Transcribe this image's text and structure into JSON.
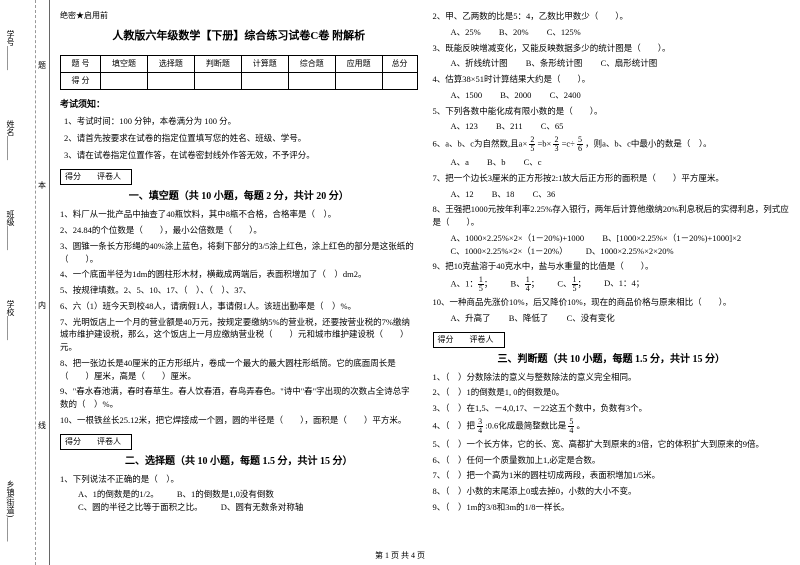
{
  "secret": "绝密★启用前",
  "title": "人教版六年级数学【下册】综合练习试卷C卷 附解析",
  "gutter": {
    "labels": [
      "学号______",
      "姓名______",
      "班级______",
      "学校______",
      "乡镇(街道)______"
    ],
    "chars": [
      "题",
      "本",
      "内",
      "线",
      "封"
    ],
    "char_extra": "禁"
  },
  "score_header": [
    "题  号",
    "填空题",
    "选择题",
    "判断题",
    "计算题",
    "综合题",
    "应用题",
    "总分"
  ],
  "score_row2_label": "得  分",
  "notice_title": "考试须知：",
  "notices": [
    "1、考试时间：100 分钟，本卷满分为 100 分。",
    "2、请首先按要求在试卷的指定位置填写您的姓名、班级、学号。",
    "3、请在试卷指定位置作答，在试卷密封线外作答无效，不予评分。"
  ],
  "scorer": {
    "label1": "得分",
    "label2": "评卷人"
  },
  "sec1": {
    "title": "一、填空题（共 10 小题，每题 2 分，共计 20 分）",
    "q": [
      "1、料厂从一批产品中抽查了40瓶饮料，其中8瓶不合格，合格率是（　）。",
      "2、24.84的个位数是（　　），最小公倍数是（　　）。",
      "3、圆锥一条长方形绳的40%涂上蓝色，将剩下部分的3/5涂上红色，涂上红色的部分是这张纸的（　　）。",
      "4、一个底面半径为1dm的圆柱形木材，横截成两端后，表面积增加了（　）dm2。",
      "5、按规律填数。2、5、10、17、（　）、（　）、37、",
      "6、六（1）班今天到校48人，请病假1人，事请假1人。该班出勤率是（　）%。",
      "7、光明饭店上一个月的营业额是40万元，按规定要缴纳5%的营业税，还要按营业税的7%缴纳城市维护建设税，那么，这个饭店上一月应缴纳营业税（　　）元和城市维护建设税（　　）元。",
      "8、把一张边长是40厘米的正方形纸片，卷成一个最大的最大圆柱形纸筒。它的底面周长是（　　）厘米，高是（　　）厘米。",
      "9、\"春水春池满，春时春草生。春人饮春酒，春鸟弄春色。\"诗中\"春\"字出现的次数占全诗总字数的（　）%。",
      "10、一根铁丝长25.12米，把它焊接成一个圆，圆的半径是（　　），面积是（　　）平方米。"
    ]
  },
  "sec2": {
    "title": "二、选择题（共 10 小题，每题 1.5 分，共计 15 分）",
    "q1": "1、下列说法不正确的是（　）。",
    "q1o": [
      "A、1的倒数是的1/2。",
      "B、1的倒数是1,0没有倒数",
      "C、圆的半径之比等于面积之比。",
      "D、圆有无数条对称轴"
    ],
    "q2": "2、甲、乙两数的比是5：4，乙数比甲数少（　　）。",
    "q2o": [
      "A、25%",
      "B、20%",
      "C、125%"
    ],
    "q3": "3、既能反映增减变化，又能反映数据多少的统计图是（　　）。",
    "q3o": [
      "A、折线统计图",
      "B、条形统计图",
      "C、扇形统计图"
    ],
    "q4": "4、估算38×51时计算结果大约是（　　）。",
    "q4o": [
      "A、1500",
      "B、2000",
      "C、2400"
    ],
    "q5": "5、下列各数中能化成有限小数的是（　　）。",
    "q5o": [
      "A、123",
      "B、211",
      "C、65"
    ],
    "q6a": "6、a、b、c为自然数,且a×",
    "q6b": "=b×",
    "q6c": "=c÷",
    "q6d": "，则a、b、c中最小的数是（　）。",
    "q6f1n": "2",
    "q6f1d": "5",
    "q6f2n": "2",
    "q6f2d": "3",
    "q6f3n": "5",
    "q6f3d": "6",
    "q6o": [
      "A、a",
      "B、b",
      "C、c"
    ],
    "q7": "7、把一个边长3厘米的正方形按2:1放大后正方形的面积是（　　）平方厘米。",
    "q7o": [
      "A、12",
      "B、18",
      "C、36"
    ],
    "q8": "8、王强把1000元按年利率2.25%存入银行，两年后计算他缴纳20%利息税后的实得利息，列式应是（　　）。",
    "q8o": [
      "A、1000×2.25%×2×（1－20%)+1000",
      "B、[1000×2.25%×（1－20%)+1000]×2",
      "C、1000×2.25%×2×（1－20%）",
      "D、1000×2.25%×2×20%"
    ],
    "q9": "9、把10克盐溶于40克水中，盐与水重量的比值是（　　）。",
    "q9oA": "A、1：",
    "q9oB": "B、",
    "q9oC": "C、",
    "q9oD": "D、1：4；",
    "q9fAn": "1",
    "q9fAd": "5",
    "q9fBn": "1",
    "q9fBd": "4",
    "q9fCn": "1",
    "q9fCd": "5",
    "q10": "10、一种商品先涨价10%，后又降价10%，现在的商品价格与原来相比（　　）。",
    "q10o": [
      "A、升高了",
      "B、降低了",
      "C、没有变化"
    ]
  },
  "sec3": {
    "title": "三、判断题（共 10 小题，每题 1.5 分，共计 15 分）",
    "q": [
      "1、（　）分数除法的意义与整数除法的意义完全相同。",
      "2、（　）1的倒数是1, 0的倒数是0。",
      "3、（　）在1,5、－4,0,17、－22这五个数中，负数有3个。"
    ],
    "q4a": "4、（　）把",
    "q4b": ":0.6化成最简整数比是",
    "q4c": "。",
    "q4f1n": "3",
    "q4f1d": "4",
    "q4f2n": "5",
    "q4f2d": "4",
    "q5to9": [
      "5、（　）一个长方体，它的长、宽、高都扩大到原来的3倍，它的体积扩大到原来的9倍。",
      "6、（　）任何一个质量数加上1,必定是合数。",
      "7、（　）把一个高为1米的圆柱切成两段，表面积增加1/5米。",
      "8、（　）小数的末尾添上0或去掉0，小数的大小不变。",
      "9、（　）1m的3/8和3m的1/8一样长。"
    ]
  },
  "footer": "第 1 页 共 4 页"
}
